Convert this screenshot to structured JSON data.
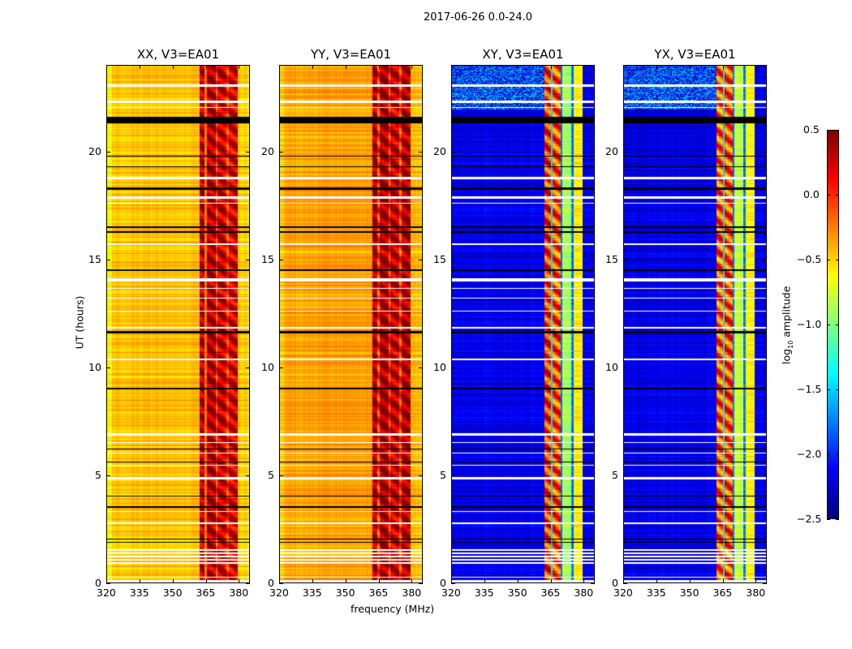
{
  "figure": {
    "suptitle": "2017-06-26 0.0-24.0",
    "ylabel": "UT (hours)",
    "xlabel": "frequency (MHz)",
    "colorbar_label_main": "log",
    "colorbar_label_sub": "10",
    "colorbar_label_rest": " amplitude"
  },
  "chart_data": {
    "type": "heatmap",
    "title": "2017-06-26 0.0-24.0",
    "xlabel": "frequency (MHz)",
    "ylabel": "UT (hours)",
    "xlim": [
      320,
      385
    ],
    "ylim": [
      0,
      24
    ],
    "xticks": [
      "320",
      "335",
      "350",
      "365",
      "380"
    ],
    "xtick_values": [
      320,
      335,
      350,
      365,
      380
    ],
    "yticks": [
      "0",
      "5",
      "10",
      "15",
      "20"
    ],
    "ytick_values": [
      0,
      5,
      10,
      15,
      20
    ],
    "colormap": "jet",
    "colorbar": {
      "label": "log10 amplitude",
      "range": [
        -2.5,
        0.5
      ],
      "ticks": [
        "0.5",
        "0.0",
        "−0.5",
        "−1.0",
        "−1.5",
        "−2.0",
        "−2.5"
      ],
      "tick_values": [
        0.5,
        0.0,
        -0.5,
        -1.0,
        -1.5,
        -2.0,
        -2.5
      ]
    },
    "panels": [
      {
        "title": "XX, V3=EA01",
        "profile": [
          [
            320,
            322,
            -0.6
          ],
          [
            322,
            362,
            -0.45
          ],
          [
            362,
            364.5,
            0.35
          ],
          [
            364.5,
            365.5,
            -0.2
          ],
          [
            365.5,
            369.5,
            0.35
          ],
          [
            369.5,
            370.5,
            -0.1
          ],
          [
            370.5,
            374.5,
            0.3
          ],
          [
            374.5,
            375.5,
            -0.1
          ],
          [
            375.5,
            379.5,
            0.25
          ],
          [
            379.5,
            385,
            -0.5
          ]
        ]
      },
      {
        "title": "YY, V3=EA01",
        "profile": [
          [
            320,
            322,
            -0.5
          ],
          [
            322,
            362,
            -0.35
          ],
          [
            362,
            364.5,
            0.4
          ],
          [
            364.5,
            365.5,
            -0.1
          ],
          [
            365.5,
            369.5,
            0.4
          ],
          [
            369.5,
            370.5,
            -0.05
          ],
          [
            370.5,
            374.5,
            0.3
          ],
          [
            374.5,
            375.5,
            -0.1
          ],
          [
            375.5,
            379.5,
            0.35
          ],
          [
            379.5,
            385,
            -0.45
          ]
        ]
      },
      {
        "title": "XY, V3=EA01",
        "profile": [
          [
            320,
            362,
            -2.2
          ],
          [
            362,
            365,
            0.0
          ],
          [
            365,
            366,
            -1.5
          ],
          [
            366,
            369.5,
            -0.1
          ],
          [
            369.5,
            370.5,
            -1.8
          ],
          [
            370.5,
            374.5,
            -0.9
          ],
          [
            374.5,
            375.5,
            -1.8
          ],
          [
            375.5,
            379.5,
            -0.6
          ],
          [
            379.5,
            385,
            -2.2
          ]
        ]
      },
      {
        "title": "YX, V3=EA01",
        "profile": [
          [
            320,
            362,
            -2.2
          ],
          [
            362,
            365,
            -0.1
          ],
          [
            365,
            366,
            -1.5
          ],
          [
            366,
            369.5,
            -0.1
          ],
          [
            369.5,
            370.5,
            -1.8
          ],
          [
            370.5,
            374.5,
            -0.8
          ],
          [
            374.5,
            375.5,
            -1.8
          ],
          [
            375.5,
            379.5,
            -0.6
          ],
          [
            379.5,
            385,
            -2.2
          ]
        ]
      }
    ],
    "flagged_hours": [
      [
        21.35,
        21.65,
        "black"
      ],
      [
        23.05,
        23.15,
        "white"
      ],
      [
        22.3,
        22.4,
        "white"
      ],
      [
        22.05,
        22.1,
        "white"
      ],
      [
        19.8,
        19.85,
        "black"
      ],
      [
        19.3,
        19.35,
        "black"
      ],
      [
        18.75,
        18.85,
        "white"
      ],
      [
        18.25,
        18.35,
        "black"
      ],
      [
        17.85,
        17.95,
        "white"
      ],
      [
        17.6,
        17.65,
        "white"
      ],
      [
        16.5,
        16.55,
        "black"
      ],
      [
        16.25,
        16.35,
        "black"
      ],
      [
        15.7,
        15.75,
        "white"
      ],
      [
        14.5,
        14.55,
        "black"
      ],
      [
        14.0,
        14.15,
        "white"
      ],
      [
        13.65,
        13.7,
        "white"
      ],
      [
        13.2,
        13.25,
        "white"
      ],
      [
        12.6,
        12.65,
        "white"
      ],
      [
        11.8,
        11.9,
        "white"
      ],
      [
        11.6,
        11.7,
        "black"
      ],
      [
        10.35,
        10.4,
        "white"
      ],
      [
        9.0,
        9.05,
        "black"
      ],
      [
        6.85,
        6.95,
        "white"
      ],
      [
        6.5,
        6.55,
        "white"
      ],
      [
        6.2,
        6.25,
        "black"
      ],
      [
        6.0,
        6.05,
        "white"
      ],
      [
        5.6,
        5.65,
        "black"
      ],
      [
        5.45,
        5.5,
        "white"
      ],
      [
        4.8,
        4.9,
        "white"
      ],
      [
        4.0,
        4.05,
        "black"
      ],
      [
        3.5,
        3.55,
        "black"
      ],
      [
        3.3,
        3.35,
        "white"
      ],
      [
        2.75,
        2.8,
        "white"
      ],
      [
        2.0,
        2.05,
        "black"
      ],
      [
        1.85,
        1.9,
        "black"
      ],
      [
        1.5,
        1.55,
        "white"
      ],
      [
        1.35,
        1.4,
        "white"
      ],
      [
        1.2,
        1.25,
        "white"
      ],
      [
        1.05,
        1.1,
        "white"
      ],
      [
        0.9,
        0.95,
        "white"
      ],
      [
        0.25,
        0.3,
        "white"
      ],
      [
        0.0,
        0.12,
        "white"
      ]
    ]
  }
}
